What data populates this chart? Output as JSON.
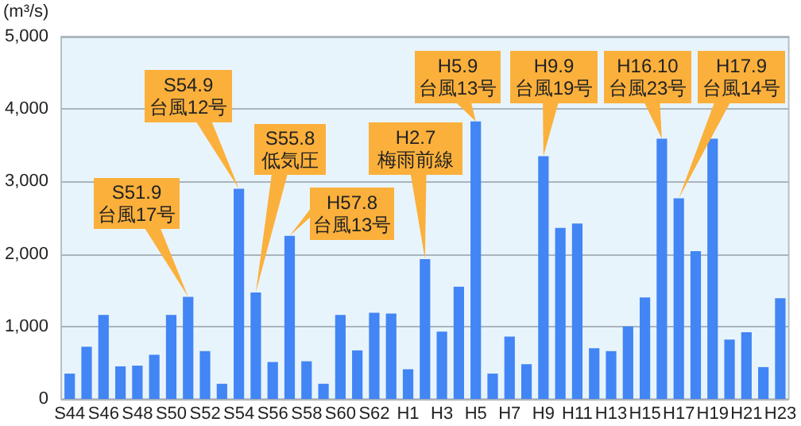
{
  "chart_data": {
    "type": "bar",
    "ylabel": "(m³/s)",
    "categories": [
      "S44",
      null,
      "S46",
      null,
      "S48",
      null,
      "S50",
      null,
      "S52",
      null,
      "S54",
      null,
      "S56",
      null,
      "S58",
      null,
      "S60",
      null,
      "S62",
      null,
      "H1",
      null,
      "H3",
      null,
      "H5",
      null,
      "H7",
      null,
      "H9",
      null,
      "H11",
      null,
      "H13",
      null,
      "H15",
      null,
      "H17",
      null,
      "H19",
      null,
      "H21",
      null,
      "H23"
    ],
    "values": [
      350,
      720,
      1160,
      450,
      460,
      610,
      1160,
      1410,
      660,
      210,
      2900,
      1470,
      510,
      2250,
      520,
      210,
      1160,
      670,
      1190,
      1180,
      410,
      1930,
      930,
      1550,
      3830,
      350,
      860,
      480,
      3350,
      2360,
      2420,
      700,
      660,
      1000,
      1400,
      3590,
      2770,
      2040,
      3590,
      820,
      920,
      440,
      1390
    ],
    "color": "#4285f4",
    "ylim": [
      0,
      5000
    ],
    "yticks": [
      {
        "value": 0,
        "label": "0"
      },
      {
        "value": 1000,
        "label": "1,000"
      },
      {
        "value": 2000,
        "label": "2,000"
      },
      {
        "value": 3000,
        "label": "3,000"
      },
      {
        "value": 4000,
        "label": "4,000"
      },
      {
        "value": 5000,
        "label": "5,000"
      }
    ],
    "grid": "y",
    "annotations": [
      "S51.9\n台風17号",
      "S54.9\n台風12号",
      "S55.8\n低気圧",
      "H57.8\n台風13号",
      "H2.7\n梅雨前線",
      "H5.9\n台風13号",
      "H9.9\n台風19号",
      "H16.10\n台風23号",
      "H17.9\n台風14号"
    ]
  }
}
